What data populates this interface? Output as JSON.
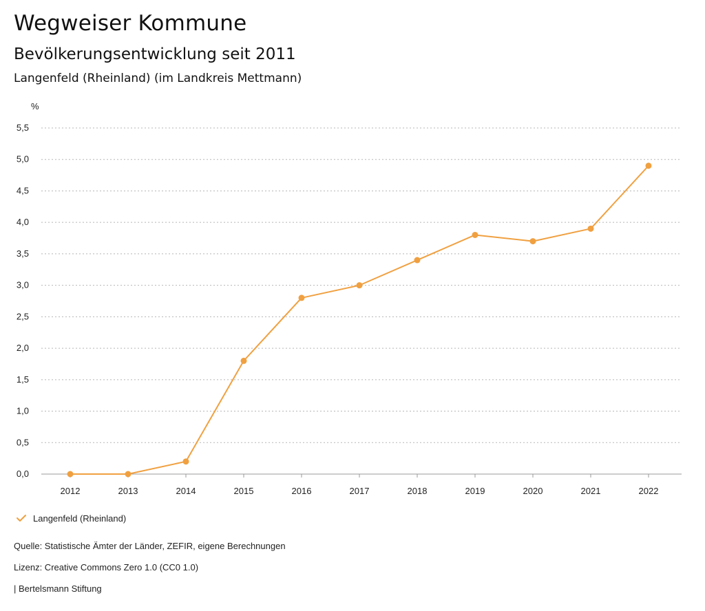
{
  "header": {
    "title": "Wegweiser Kommune",
    "subtitle": "Bevölkerungsentwicklung seit 2011",
    "region": "Langenfeld (Rheinland) (im Landkreis Mettmann)"
  },
  "chart_data": {
    "type": "line",
    "title": "Bevölkerungsentwicklung seit 2011",
    "xlabel": "",
    "ylabel": "%",
    "categories": [
      "2012",
      "2013",
      "2014",
      "2015",
      "2016",
      "2017",
      "2018",
      "2019",
      "2020",
      "2021",
      "2022"
    ],
    "series": [
      {
        "name": "Langenfeld (Rheinland)",
        "color": "#f0a040",
        "values": [
          0.0,
          0.0,
          0.2,
          1.8,
          2.8,
          3.0,
          3.4,
          3.8,
          3.7,
          3.9,
          4.9
        ]
      }
    ],
    "ylim": [
      0,
      5.5
    ],
    "yticks": [
      0,
      0.5,
      1.0,
      1.5,
      2.0,
      2.5,
      3.0,
      3.5,
      4.0,
      4.5,
      5.0,
      5.5
    ],
    "ytick_labels": [
      "0,0",
      "0,5",
      "1,0",
      "1,5",
      "2,0",
      "2,5",
      "3,0",
      "3,5",
      "4,0",
      "4,5",
      "5,0",
      "5,5"
    ],
    "grid": true,
    "legend": "bottom-left"
  },
  "legend": {
    "label": "Langenfeld (Rheinland)",
    "icon": "check-icon"
  },
  "footer": {
    "source": "Quelle: Statistische Ämter der Länder, ZEFIR, eigene Berechnungen",
    "license": "Lizenz: Creative Commons Zero 1.0 (CC0 1.0)",
    "publisher": "| Bertelsmann Stiftung"
  }
}
